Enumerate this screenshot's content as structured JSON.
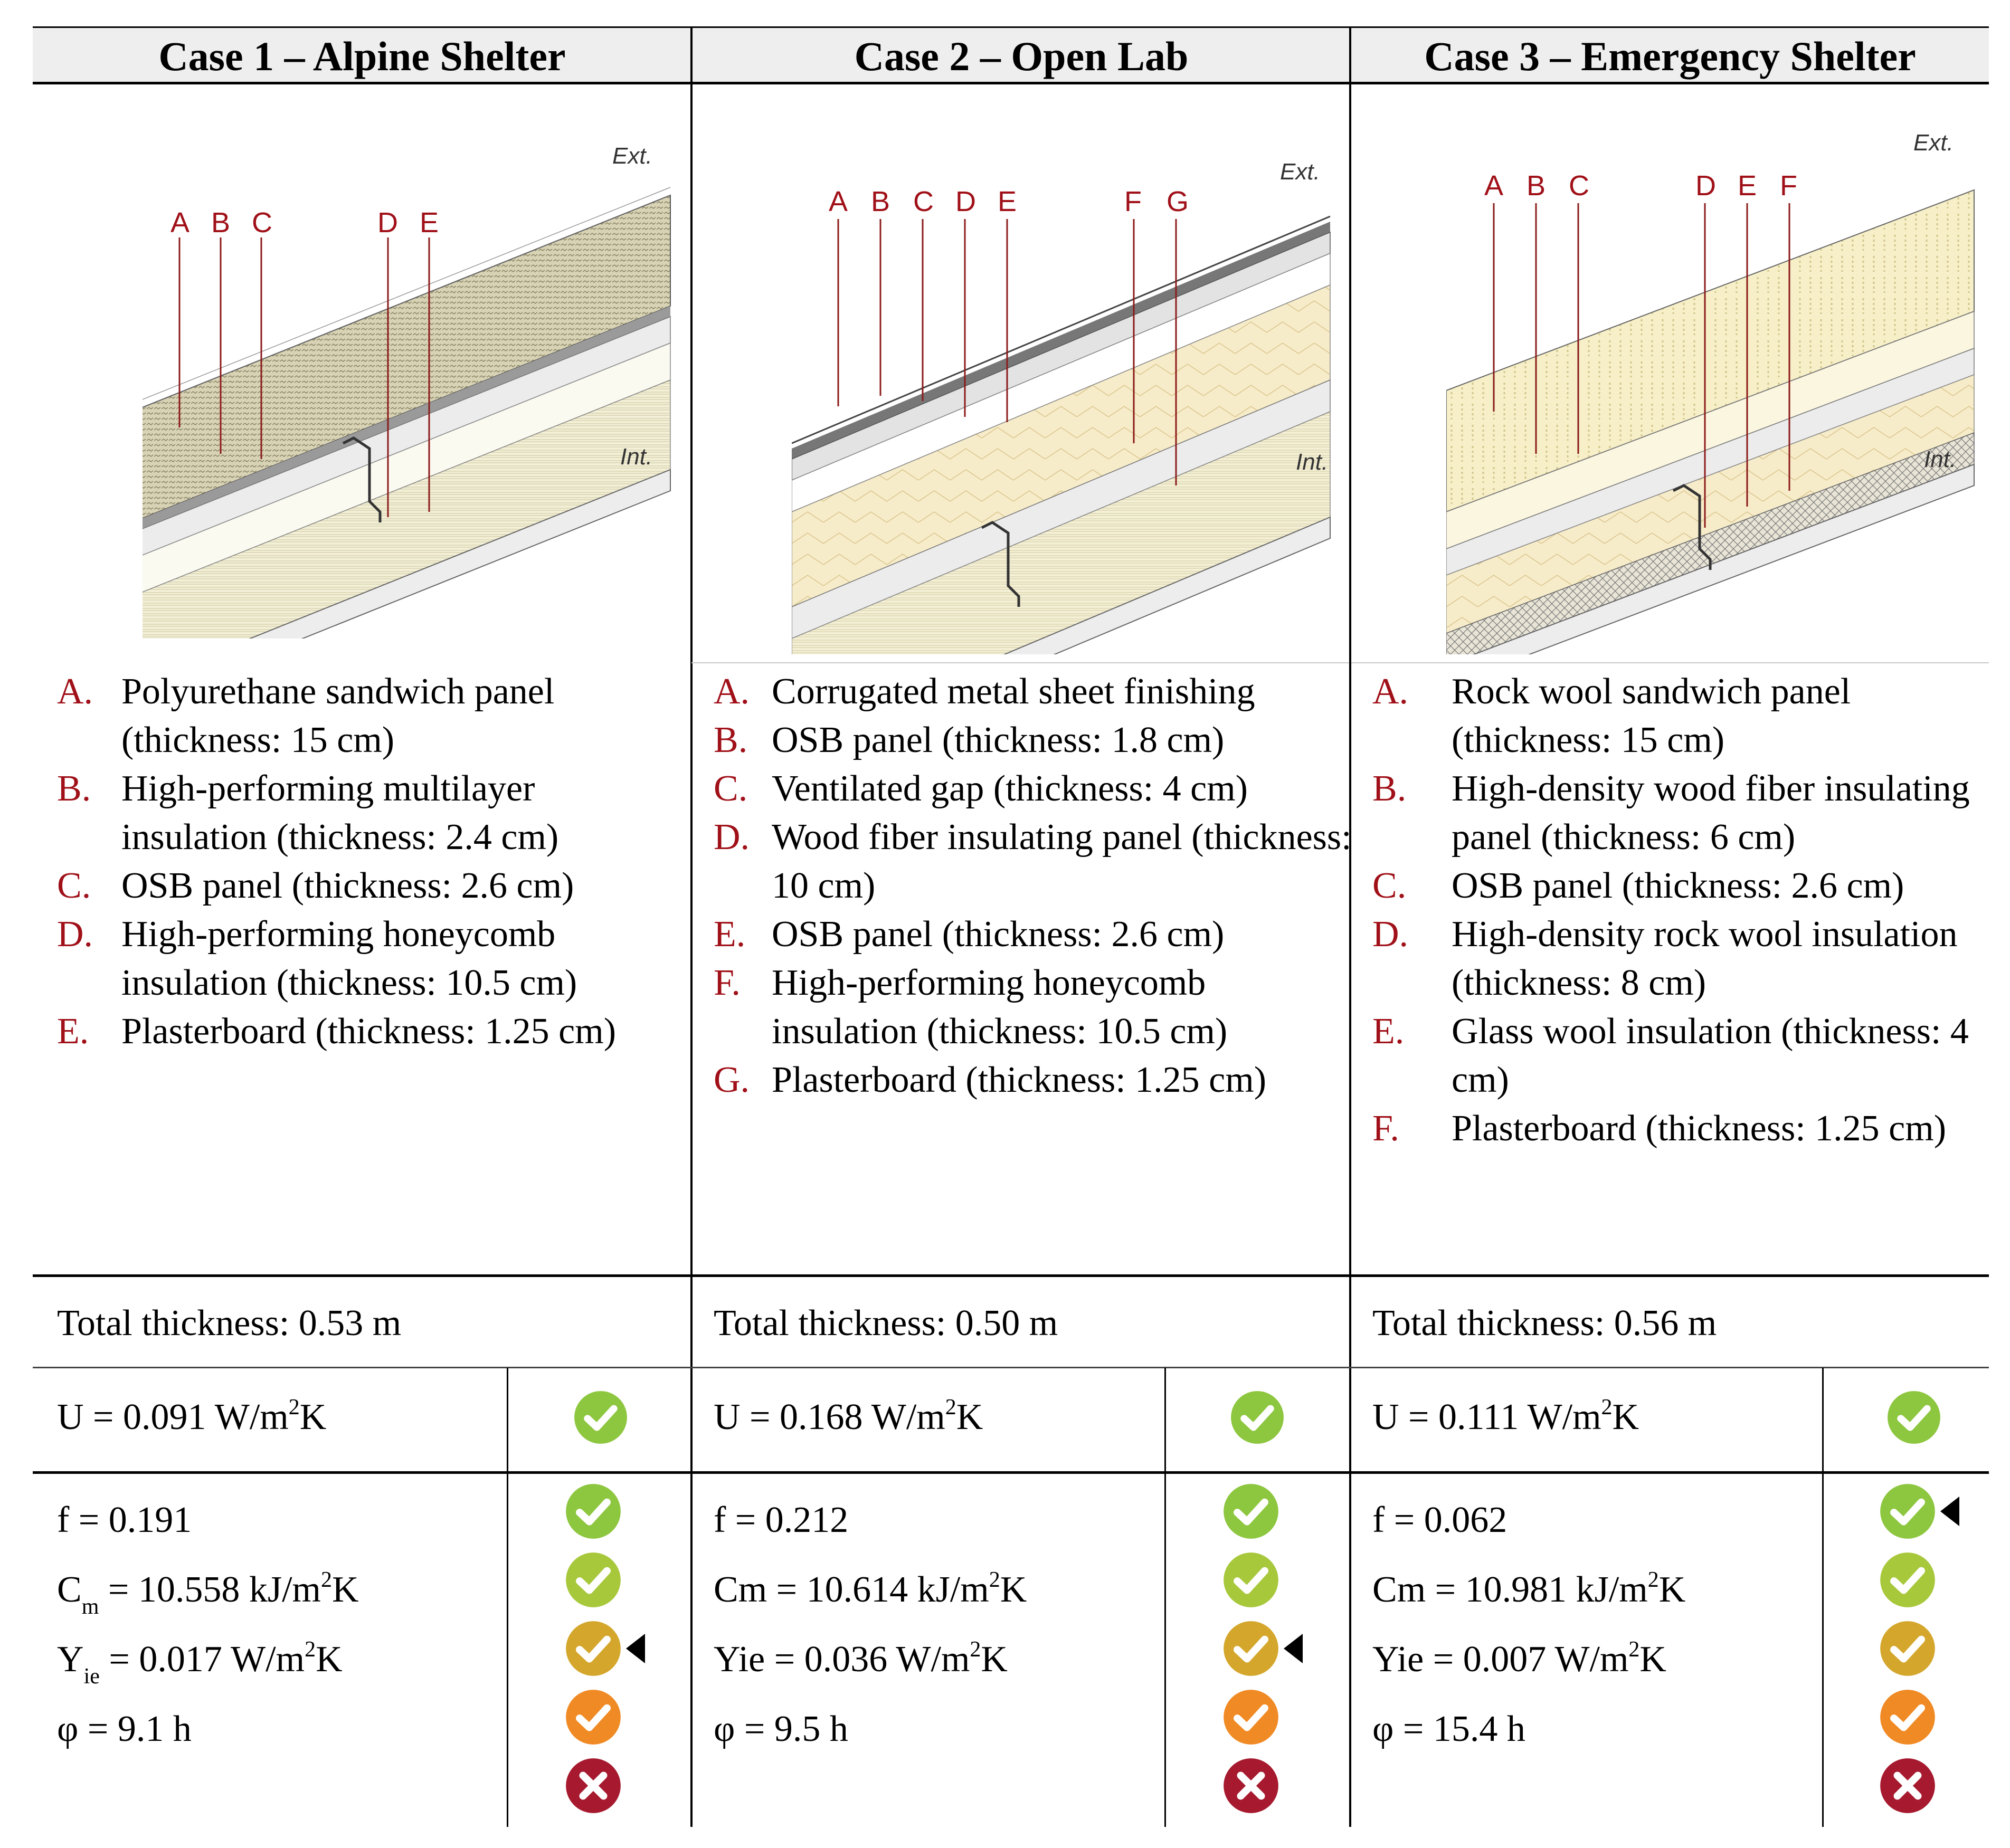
{
  "columns": [
    {
      "title": "Case 1 – Alpine Shelter",
      "diagram": {
        "ext_label": "Ext.",
        "int_label": "Int.",
        "callouts": [
          "A",
          "B",
          "C",
          "D",
          "E"
        ]
      },
      "layers": [
        {
          "letter": "A.",
          "text": "Polyurethane sandwich panel (thickness: 15 cm)"
        },
        {
          "letter": "B.",
          "text": "High-performing multilayer insulation (thickness: 2.4 cm)"
        },
        {
          "letter": "C.",
          "text": "OSB panel (thickness: 2.6 cm)"
        },
        {
          "letter": "D.",
          "text": "High-performing honeycomb insulation (thickness: 10.5 cm)"
        },
        {
          "letter": "E.",
          "text": "Plasterboard (thickness: 1.25 cm)"
        }
      ],
      "total": "Total thickness: 0.53 m",
      "u": {
        "prefix": "U = 0.091 W/m",
        "sup": "2",
        "suffix": "K"
      },
      "f": "f = 0.191",
      "cm": {
        "main": "C",
        "sub": "m",
        "rest": " = 10.558 kJ/m",
        "sup": "2",
        "suffix": "K"
      },
      "yie": {
        "main": "Y",
        "sub": "ie",
        "rest": " = 0.017 W/m",
        "sup": "2",
        "suffix": "K"
      },
      "phi": "φ = 9.1 h",
      "selected_marker_row": 2
    },
    {
      "title": "Case 2 – Open Lab",
      "diagram": {
        "ext_label": "Ext.",
        "int_label": "Int.",
        "callouts": [
          "A",
          "B",
          "C",
          "D",
          "E",
          "F",
          "G"
        ]
      },
      "layers": [
        {
          "letter": "A.",
          "text": "Corrugated metal sheet finishing"
        },
        {
          "letter": "B.",
          "text": "OSB panel (thickness: 1.8 cm)"
        },
        {
          "letter": "C.",
          "text": "Ventilated gap (thickness: 4 cm)"
        },
        {
          "letter": "D.",
          "text": "Wood fiber insulating panel (thickness: 10 cm)"
        },
        {
          "letter": "E.",
          "text": "OSB panel (thickness: 2.6 cm)"
        },
        {
          "letter": "F.",
          "text": "High-performing honeycomb insulation (thickness: 10.5 cm)"
        },
        {
          "letter": "G.",
          "text": "Plasterboard (thickness: 1.25 cm)"
        }
      ],
      "total": "Total thickness: 0.50 m",
      "u": {
        "prefix": "U = 0.168 W/m",
        "sup": "2",
        "suffix": "K"
      },
      "f": "f = 0.212",
      "cm": {
        "main": "Cm",
        "sub": "",
        "rest": " = 10.614 kJ/m",
        "sup": "2",
        "suffix": "K"
      },
      "yie": {
        "main": "Yie",
        "sub": "",
        "rest": " = 0.036 W/m",
        "sup": "2",
        "suffix": "K"
      },
      "phi": "φ = 9.5 h",
      "selected_marker_row": 2
    },
    {
      "title": "Case 3 – Emergency Shelter",
      "diagram": {
        "ext_label": "Ext.",
        "int_label": "Int.",
        "callouts": [
          "A",
          "B",
          "C",
          "D",
          "E",
          "F"
        ]
      },
      "layers": [
        {
          "letter": "A.",
          "text": "Rock wool sandwich panel (thickness: 15 cm)"
        },
        {
          "letter": "B.",
          "text": "High-density wood fiber insulating panel (thickness: 6 cm)"
        },
        {
          "letter": "C.",
          "text": "OSB panel (thickness: 2.6 cm)"
        },
        {
          "letter": "D.",
          "text": "High-density rock wool insulation (thickness: 8 cm)"
        },
        {
          "letter": "E.",
          "text": "Glass wool insulation (thickness: 4 cm)"
        },
        {
          "letter": "F.",
          "text": "Plasterboard (thickness: 1.25 cm)"
        }
      ],
      "total": "Total thickness: 0.56 m",
      "u": {
        "prefix": "U = 0.111 W/m",
        "sup": "2",
        "suffix": "K"
      },
      "f": "f = 0.062",
      "cm": {
        "main": "Cm",
        "sub": "",
        "rest": " = 10.981 kJ/m",
        "sup": "2",
        "suffix": "K"
      },
      "yie": {
        "main": "Yie",
        "sub": "",
        "rest": " = 0.007 W/m",
        "sup": "2",
        "suffix": "K"
      },
      "phi": "φ = 15.4 h",
      "selected_marker_row": 0
    }
  ],
  "rating_scale": [
    {
      "icon": "check-icon",
      "color": "#8dc63f"
    },
    {
      "icon": "check-icon",
      "color": "#a8c83c"
    },
    {
      "icon": "check-icon",
      "color": "#d4a72c"
    },
    {
      "icon": "check-icon",
      "color": "#f08a24"
    },
    {
      "icon": "cross-icon",
      "color": "#a6192e"
    }
  ],
  "u_icon": {
    "icon": "check-icon",
    "color": "#8dc63f"
  },
  "colors": {
    "letter": "#a01018",
    "header_bg": "#eeeeee"
  }
}
